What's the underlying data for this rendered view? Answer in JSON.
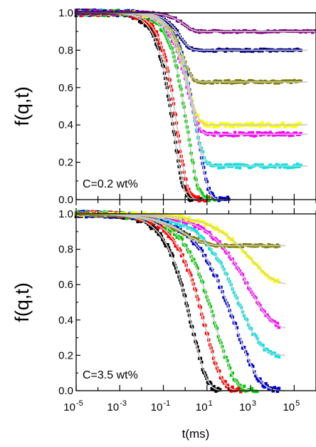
{
  "figure": {
    "xlabel": "t(ms)",
    "x_ticks": [
      {
        "base": "10",
        "exp": "-5",
        "value": 1e-05
      },
      {
        "base": "10",
        "exp": "-3",
        "value": 0.001
      },
      {
        "base": "10",
        "exp": "-1",
        "value": 0.1
      },
      {
        "base": "10",
        "exp": "1",
        "value": 10
      },
      {
        "base": "10",
        "exp": "3",
        "value": 1000
      },
      {
        "base": "10",
        "exp": "5",
        "value": 100000
      }
    ]
  },
  "chart_data": [
    {
      "type": "scatter",
      "panel": "top",
      "annotation": "C=0.2 wt%",
      "ylabel": "f(q,t)",
      "xscale": "log",
      "xlim": [
        1e-05,
        1000000.0
      ],
      "ylim": [
        0,
        1.0
      ],
      "y_ticks": [
        "0.0",
        "0.2",
        "0.4",
        "0.6",
        "0.8",
        "1.0"
      ],
      "reference_line": 1.0,
      "series": [
        {
          "color": "#000000",
          "plateau": 0.0,
          "tau": 0.3,
          "beta": 0.95,
          "end": 8,
          "noise": 0.015
        },
        {
          "color": "#ff0000",
          "plateau": 0.0,
          "tau": 0.45,
          "beta": 0.95,
          "end": 12,
          "noise": 0.015
        },
        {
          "color": "#00cc00",
          "plateau": 0.0,
          "tau": 1.3,
          "beta": 0.9,
          "end": 30,
          "noise": 0.015
        },
        {
          "color": "#0000cc",
          "plateau": 0.0,
          "tau": 3.5,
          "beta": 0.85,
          "end": 100,
          "noise": 0.015
        },
        {
          "color": "#00e5e5",
          "plateau": 0.18,
          "tau": 2.2,
          "beta": 0.85,
          "end": 200000,
          "noise": 0.01
        },
        {
          "color": "#ff00ff",
          "plateau": 0.35,
          "tau": 1.3,
          "beta": 0.85,
          "end": 200000,
          "noise": 0.01
        },
        {
          "color": "#ffff00",
          "plateau": 0.4,
          "tau": 1.3,
          "beta": 0.9,
          "end": 200000,
          "noise": 0.01
        },
        {
          "color": "#808000",
          "plateau": 0.63,
          "tau": 0.8,
          "beta": 1.0,
          "end": 200000,
          "noise": 0.008
        },
        {
          "color": "#000080",
          "plateau": 0.8,
          "tau": 0.6,
          "beta": 1.0,
          "end": 200000,
          "noise": 0.006
        },
        {
          "color": "#800080",
          "plateau": 0.9,
          "tau": 0.9,
          "beta": 1.0,
          "end": 1000000,
          "noise": 0.005
        }
      ]
    },
    {
      "type": "scatter",
      "panel": "bottom",
      "annotation": "C=3.5 wt%",
      "ylabel": "f(q,t)",
      "xscale": "log",
      "xlim": [
        1e-05,
        1000000.0
      ],
      "ylim": [
        0,
        1.0
      ],
      "y_ticks": [
        "0.0",
        "0.2",
        "0.4",
        "0.6",
        "0.8",
        "1.0"
      ],
      "series": [
        {
          "color": "#000000",
          "plateau": 0.0,
          "tau": 2.0,
          "beta": 0.62,
          "end": 40,
          "noise": 0.015
        },
        {
          "color": "#ff0000",
          "plateau": 0.0,
          "tau": 8.0,
          "beta": 0.55,
          "end": 400,
          "noise": 0.015
        },
        {
          "color": "#00cc00",
          "plateau": 0.0,
          "tau": 25.0,
          "beta": 0.5,
          "end": 2000,
          "noise": 0.015
        },
        {
          "color": "#0000cc",
          "plateau": 0.0,
          "tau": 200.0,
          "beta": 0.4,
          "end": 20000,
          "noise": 0.015
        },
        {
          "color": "#00e5e5",
          "plateau": 0.2,
          "tau": 300.0,
          "beta": 0.42,
          "end": 20000,
          "noise": 0.012
        },
        {
          "color": "#ff00ff",
          "plateau": 0.35,
          "tau": 800.0,
          "beta": 0.4,
          "end": 20000,
          "noise": 0.01
        },
        {
          "color": "#ffff00",
          "plateau": 0.6,
          "tau": 1000.0,
          "beta": 0.4,
          "end": 20000,
          "noise": 0.008
        },
        {
          "color": "#808000",
          "plateau": 0.82,
          "tau": 1.0,
          "beta": 0.45,
          "end": 20000,
          "noise": 0.006
        }
      ]
    }
  ]
}
